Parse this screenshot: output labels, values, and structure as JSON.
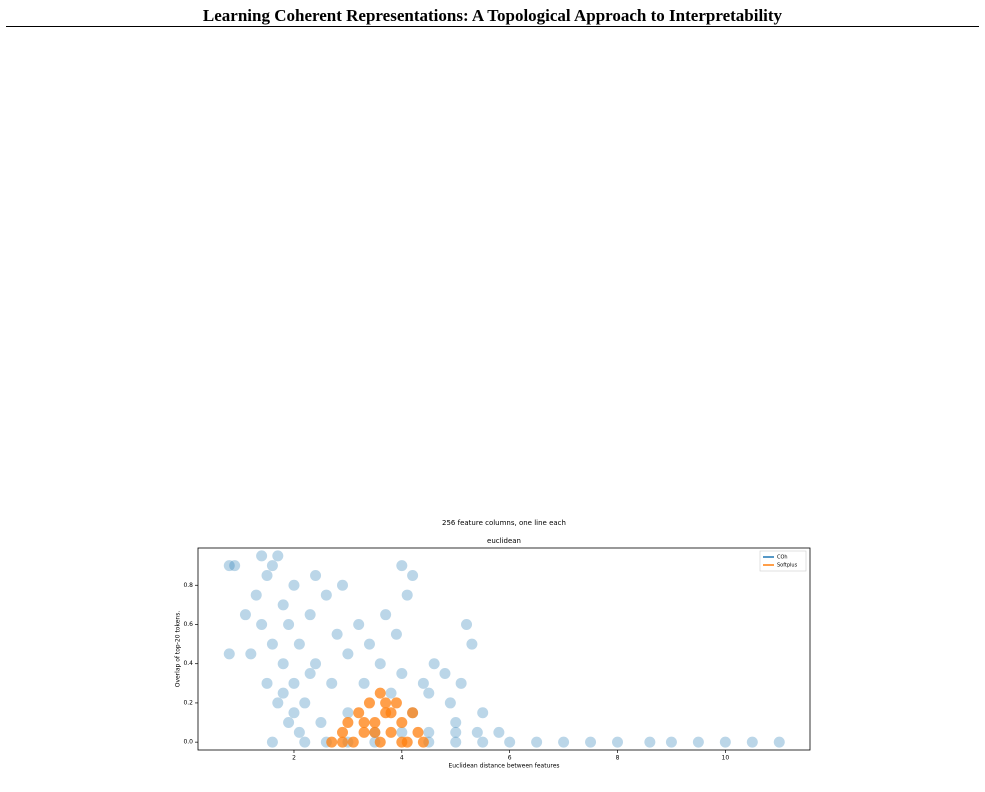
{
  "header": {
    "title": "Learning Coherent Representations: A Topological Approach to Interpretability"
  },
  "chart_data": {
    "type": "scatter",
    "title": "256 feature columns, one line each",
    "subtitle": "euclidean",
    "x_label": "Euclidean distance between features",
    "y_label": "Overlap of top-20 tokens.",
    "xlim": [
      0.22,
      11.57
    ],
    "ylim": [
      -0.04,
      0.99
    ],
    "xticks": [
      2,
      4,
      6,
      8,
      10
    ],
    "yticks": [
      {
        "value": 0,
        "label": "0.0"
      },
      0.2,
      0.4,
      0.6,
      0.8
    ],
    "legend": "upper right",
    "series": [
      {
        "name": "COh",
        "color": "#1f77b4",
        "x": [
          0.8,
          0.9,
          0.8,
          1.1,
          1.2,
          1.3,
          1.4,
          1.4,
          1.5,
          1.5,
          1.6,
          1.6,
          1.7,
          1.7,
          1.8,
          1.8,
          1.9,
          1.9,
          2.0,
          2.0,
          2.1,
          2.1,
          2.2,
          2.3,
          2.4,
          2.4,
          2.5,
          2.6,
          2.7,
          2.8,
          2.9,
          3.0,
          3.0,
          3.2,
          3.3,
          3.4,
          3.5,
          3.6,
          3.7,
          3.8,
          3.9,
          4.0,
          4.0,
          4.1,
          4.2,
          4.2,
          4.4,
          4.5,
          4.6,
          4.8,
          4.9,
          5.0,
          5.1,
          5.2,
          5.3,
          5.4,
          5.5,
          5.8,
          1.6,
          2.2,
          2.6,
          3.0,
          4.5,
          5.0,
          5.5,
          6.0,
          6.5,
          7.0,
          7.5,
          8.0,
          8.6,
          9.0,
          9.5,
          10.0,
          10.5,
          11.0,
          3.5,
          4.0,
          4.5,
          5.0,
          2.0,
          1.8,
          2.3
        ],
        "values": [
          0.9,
          0.9,
          0.45,
          0.65,
          0.45,
          0.75,
          0.95,
          0.6,
          0.3,
          0.85,
          0.9,
          0.5,
          0.95,
          0.2,
          0.7,
          0.4,
          0.6,
          0.1,
          0.8,
          0.3,
          0.5,
          0.05,
          0.2,
          0.65,
          0.85,
          0.4,
          0.1,
          0.75,
          0.3,
          0.55,
          0.8,
          0.45,
          0.15,
          0.6,
          0.3,
          0.5,
          0.05,
          0.4,
          0.65,
          0.25,
          0.55,
          0.9,
          0.35,
          0.75,
          0.85,
          0.15,
          0.3,
          0.25,
          0.4,
          0.35,
          0.2,
          0.1,
          0.3,
          0.6,
          0.5,
          0.05,
          0.15,
          0.05,
          0,
          0,
          0,
          0,
          0,
          0,
          0,
          0,
          0,
          0,
          0,
          0,
          0,
          0,
          0,
          0,
          0,
          0,
          0,
          0.05,
          0.05,
          0.05,
          0.15,
          0.25,
          0.35
        ]
      },
      {
        "name": "Softplus",
        "color": "#ff7f0e",
        "x": [
          2.7,
          2.9,
          3.0,
          3.1,
          3.2,
          3.3,
          3.4,
          3.5,
          3.6,
          3.6,
          3.7,
          3.8,
          3.9,
          4.0,
          4.1,
          4.2,
          4.3,
          4.4,
          3.5,
          3.3,
          3.8,
          4.0,
          2.9,
          3.7
        ],
        "values": [
          0,
          0.05,
          0.1,
          0,
          0.15,
          0.05,
          0.2,
          0.1,
          0.25,
          0,
          0.15,
          0.05,
          0.2,
          0.1,
          0,
          0.15,
          0.05,
          0,
          0.05,
          0.1,
          0.15,
          0,
          0,
          0.2
        ]
      }
    ]
  }
}
